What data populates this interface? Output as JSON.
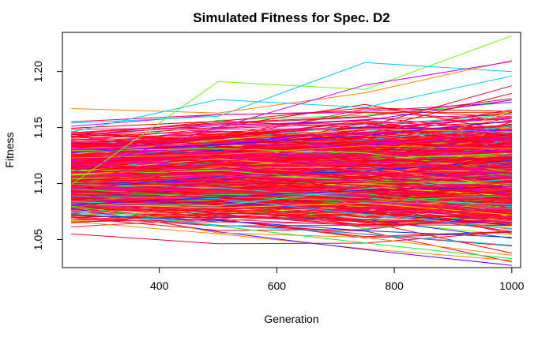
{
  "chart_data": {
    "type": "line",
    "title": "Simulated Fitness for Spec. D2",
    "xlabel": "Generation",
    "ylabel": "Fitness",
    "xlim": [
      235,
      1015
    ],
    "ylim": [
      1.025,
      1.235
    ],
    "x": [
      250,
      500,
      750,
      1000
    ],
    "xticks": [
      400,
      600,
      800,
      1000
    ],
    "yticks": [
      1.05,
      1.1,
      1.15,
      1.2
    ],
    "ytick_labels": [
      "1.05",
      "1.10",
      "1.15",
      "1.20"
    ],
    "grid": false,
    "legend": "none",
    "palette": [
      "#ff0033",
      "#ff0066",
      "#ff1a4d",
      "#ff0000",
      "#ff3300",
      "#ff00cc",
      "#cc00ff",
      "#6600ff",
      "#0033ff",
      "#00ccff",
      "#00ffcc",
      "#00ff33",
      "#66ff00",
      "#ccff00",
      "#ffcc00",
      "#ff8800"
    ],
    "series_count": 1200,
    "series_examples": [
      {
        "values": [
          1.099,
          1.191,
          1.184,
          1.232
        ],
        "color": "#66ff00"
      },
      {
        "values": [
          1.154,
          1.16,
          1.208,
          1.2
        ],
        "color": "#00ccff"
      },
      {
        "values": [
          1.167,
          1.163,
          1.181,
          1.21
        ],
        "color": "#ff8800"
      },
      {
        "values": [
          1.146,
          1.175,
          1.168,
          1.196
        ],
        "color": "#00ccff"
      },
      {
        "values": [
          1.11,
          1.15,
          1.188,
          1.209
        ],
        "color": "#cc00ff"
      },
      {
        "values": [
          1.078,
          1.057,
          1.041,
          1.027
        ],
        "color": "#6600ff"
      },
      {
        "values": [
          1.08,
          1.062,
          1.047,
          1.033
        ],
        "color": "#00ff33"
      },
      {
        "values": [
          1.079,
          1.056,
          1.052,
          1.036
        ],
        "color": "#ff8800"
      },
      {
        "values": [
          1.075,
          1.063,
          1.055,
          1.045
        ],
        "color": "#00ccff"
      },
      {
        "values": [
          1.072,
          1.067,
          1.058,
          1.052
        ],
        "color": "#0033ff"
      }
    ]
  }
}
